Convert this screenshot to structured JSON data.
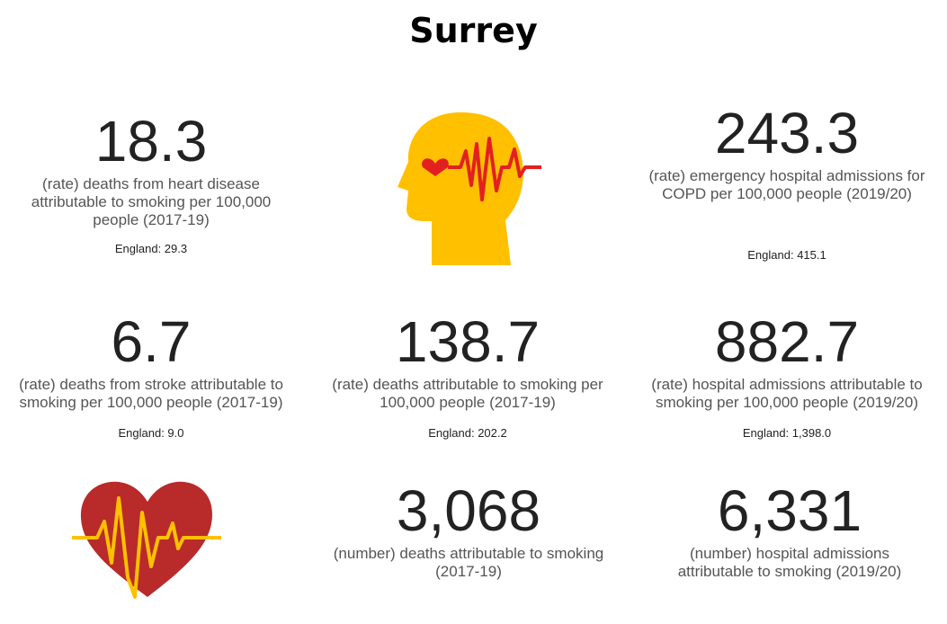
{
  "title": "Surrey",
  "tiles": [
    {
      "value": "18.3",
      "description": "(rate) deaths from heart disease attributable to smoking per 100,000 people (2017-19)",
      "england": "England: 29.3"
    },
    {
      "value": "243.3",
      "description": "(rate) emergency hospital admissions for COPD per 100,000 people (2019/20)",
      "england": "England: 415.1"
    },
    {
      "value": "6.7",
      "description": "(rate) deaths from stroke attributable to smoking per 100,000 people (2017-19)",
      "england": "England: 9.0"
    },
    {
      "value": "138.7",
      "description": "(rate) deaths attributable to smoking per 100,000 people (2017-19)",
      "england": "England: 202.2"
    },
    {
      "value": "882.7",
      "description": "(rate) hospital admissions attributable to smoking per 100,000 people (2019/20)",
      "england": "England: 1,398.0"
    },
    {
      "value": "3,068",
      "description": "(number) deaths attributable to smoking (2017-19)"
    },
    {
      "value": "6,331",
      "description": "(number) hospital admissions attributable to smoking (2019/20)"
    }
  ]
}
